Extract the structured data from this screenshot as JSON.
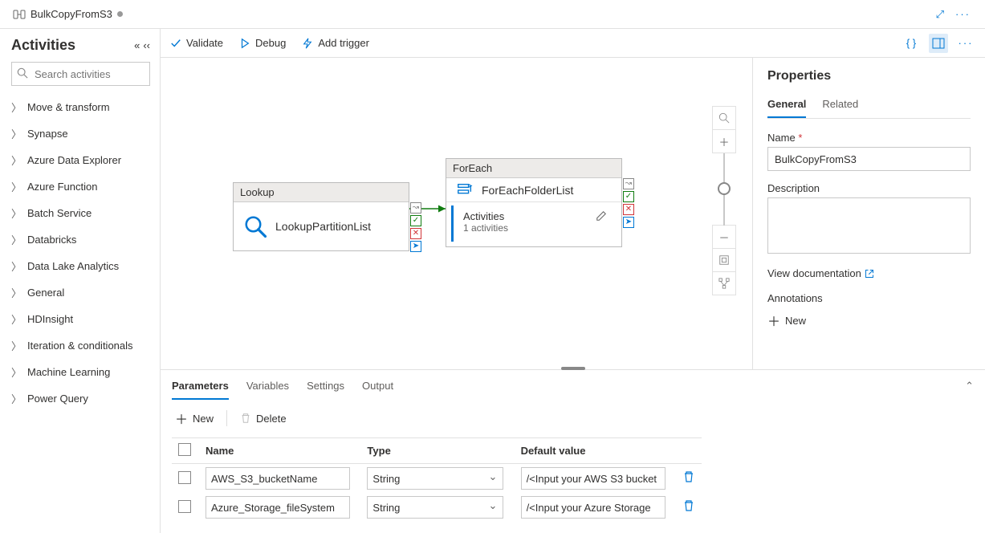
{
  "colors": {
    "blue": "#0078d4",
    "success": "#107c10",
    "fail": "#d13438"
  },
  "tab": {
    "title": "BulkCopyFromS3",
    "dirty": true
  },
  "toolbar": {
    "validate": "Validate",
    "debug": "Debug",
    "add_trigger": "Add trigger"
  },
  "sidebar": {
    "title": "Activities",
    "search_placeholder": "Search activities",
    "categories": [
      "Move & transform",
      "Synapse",
      "Azure Data Explorer",
      "Azure Function",
      "Batch Service",
      "Databricks",
      "Data Lake Analytics",
      "General",
      "HDInsight",
      "Iteration & conditionals",
      "Machine Learning",
      "Power Query"
    ]
  },
  "canvas": {
    "lookup": {
      "type_label": "Lookup",
      "name": "LookupPartitionList"
    },
    "foreach": {
      "type_label": "ForEach",
      "name": "ForEachFolderList",
      "activities_label": "Activities",
      "activities_count": "1 activities"
    }
  },
  "bottom": {
    "tabs": {
      "parameters": "Parameters",
      "variables": "Variables",
      "settings": "Settings",
      "output": "Output"
    },
    "new": "New",
    "delete": "Delete",
    "columns": {
      "name": "Name",
      "type": "Type",
      "default": "Default value"
    },
    "rows": [
      {
        "name": "AWS_S3_bucketName",
        "type": "String",
        "default": "/<Input your AWS S3 bucket"
      },
      {
        "name": "Azure_Storage_fileSystem",
        "type": "String",
        "default": "/<Input your Azure Storage"
      }
    ]
  },
  "props": {
    "title": "Properties",
    "tabs": {
      "general": "General",
      "related": "Related"
    },
    "name_label": "Name",
    "name_value": "BulkCopyFromS3",
    "desc_label": "Description",
    "desc_value": "",
    "doc_link": "View documentation",
    "annotations_label": "Annotations",
    "annotations_new": "New"
  }
}
